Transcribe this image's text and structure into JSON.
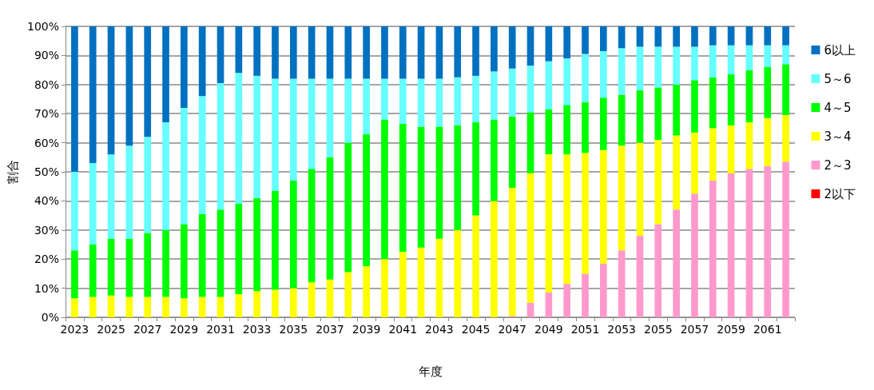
{
  "chart_data": {
    "type": "bar",
    "stacked": true,
    "xlabel": "年度",
    "ylabel": "割合",
    "categories": [
      "2023",
      null,
      "2025",
      null,
      "2027",
      null,
      "2029",
      null,
      "2031",
      null,
      "2033",
      null,
      "2035",
      null,
      "2037",
      null,
      "2039",
      null,
      "2041",
      null,
      "2043",
      null,
      "2045",
      null,
      "2047",
      null,
      "2049",
      null,
      "2051",
      null,
      "2053",
      null,
      "2055",
      null,
      "2057",
      null,
      "2059",
      null,
      "2061",
      null
    ],
    "ylim": [
      0,
      100
    ],
    "yticks": [
      {
        "value": 0,
        "label": "0%"
      },
      {
        "value": 10,
        "label": "10%"
      },
      {
        "value": 20,
        "label": "20%"
      },
      {
        "value": 30,
        "label": "30%"
      },
      {
        "value": 40,
        "label": "40%"
      },
      {
        "value": 50,
        "label": "50%"
      },
      {
        "value": 60,
        "label": "60%"
      },
      {
        "value": 70,
        "label": "70%"
      },
      {
        "value": 80,
        "label": "80%"
      },
      {
        "value": 90,
        "label": "90%"
      },
      {
        "value": 100,
        "label": "100%"
      }
    ],
    "grid": "y",
    "legend": "right",
    "series": [
      {
        "name": "2以下",
        "color": "#ff0000",
        "values": [
          0,
          0,
          0,
          0,
          0,
          0,
          0,
          0,
          0,
          0,
          0,
          0,
          0,
          0,
          0,
          0,
          0,
          0,
          0,
          0,
          0,
          0,
          0,
          0,
          0,
          0,
          0,
          0,
          0,
          0,
          0,
          0,
          0,
          0,
          0,
          0,
          0,
          0,
          0,
          0
        ]
      },
      {
        "name": "2～3",
        "color": "#ff99cc",
        "values": [
          0,
          0,
          0,
          0,
          0,
          0,
          0,
          0,
          0,
          0,
          0,
          0,
          0,
          0,
          0,
          0,
          0,
          0,
          0,
          0,
          0,
          0,
          0,
          0,
          0.5,
          5,
          8.5,
          11.5,
          15,
          18.5,
          23,
          28,
          32,
          37,
          42.5,
          47,
          49.5,
          51,
          52,
          53.5
        ]
      },
      {
        "name": "3～4",
        "color": "#ffff00",
        "values": [
          6.5,
          7,
          7.5,
          7,
          7,
          7,
          6.5,
          7,
          7,
          8,
          9,
          9.5,
          10,
          12,
          13,
          15.5,
          17.5,
          20,
          22.5,
          24,
          27,
          30,
          35,
          40,
          44,
          44.5,
          47.5,
          44.5,
          41.5,
          39,
          36,
          32,
          29,
          25.5,
          21,
          18,
          16.5,
          16,
          16.5,
          16
        ]
      },
      {
        "name": "4～5",
        "color": "#00ff00",
        "values": [
          16.5,
          18,
          19.5,
          20,
          22,
          23,
          25.5,
          28.5,
          30,
          31,
          32,
          34,
          37,
          39,
          42,
          44.5,
          45.5,
          48,
          44,
          41.5,
          38.5,
          36,
          32,
          28,
          24.5,
          21,
          15.5,
          17,
          17.5,
          18,
          17.5,
          18,
          18,
          17.5,
          18,
          17.5,
          17.5,
          18,
          17.5,
          17.5
        ]
      },
      {
        "name": "5～6",
        "color": "#66ffff",
        "values": [
          27,
          28,
          29,
          32,
          33,
          37,
          40,
          40.5,
          43.5,
          45,
          42,
          38.5,
          35,
          31,
          27,
          22,
          19,
          14,
          15.5,
          16.5,
          16.5,
          16.5,
          16,
          16.5,
          16.5,
          16,
          16.5,
          16,
          16.5,
          16,
          16,
          15,
          14,
          13,
          11.5,
          11,
          10,
          8.5,
          7.5,
          6.5
        ]
      },
      {
        "name": "6以上",
        "color": "#0070c0",
        "values": [
          50,
          47,
          44,
          41,
          38,
          33,
          28,
          24,
          19.5,
          16,
          17,
          18,
          18,
          18,
          18,
          18,
          18,
          18,
          18,
          18,
          18,
          17.5,
          17,
          15.5,
          14.5,
          13.5,
          12,
          11,
          9.5,
          8.5,
          7.5,
          7,
          7,
          7,
          7,
          6.5,
          6.5,
          6.5,
          6.5,
          6.5
        ]
      }
    ]
  }
}
